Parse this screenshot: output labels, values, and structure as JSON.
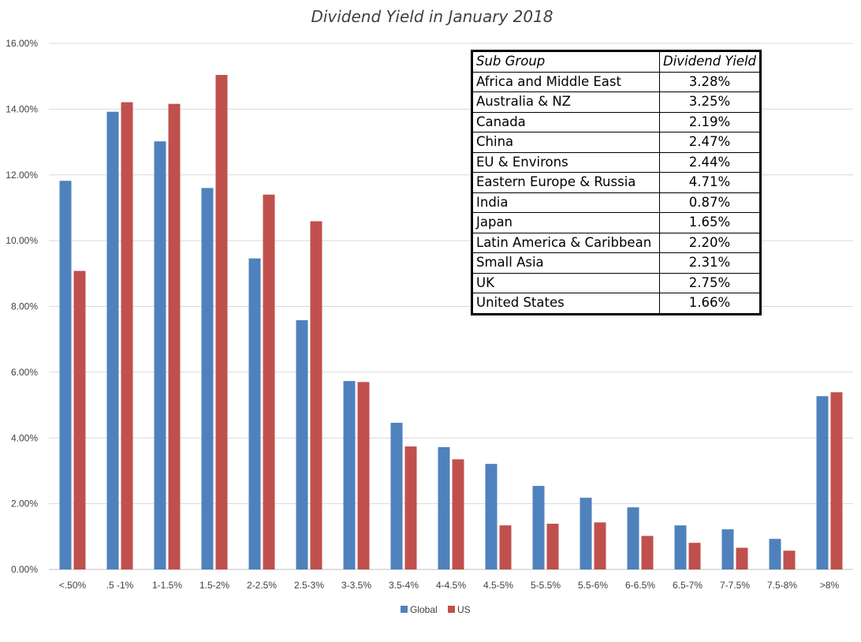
{
  "chart_data": {
    "type": "bar",
    "title": "Dividend Yield in January 2018",
    "categories": [
      "<.50%",
      ".5 -1%",
      "1-1.5%",
      "1.5-2%",
      "2-2.5%",
      "2.5-3%",
      "3-3.5%",
      "3.5-4%",
      "4-4.5%",
      "4.5-5%",
      "5-5.5%",
      "5.5-6%",
      "6-6.5%",
      "6.5-7%",
      "7-7.5%",
      "7.5-8%",
      ">8%"
    ],
    "series": [
      {
        "name": "Global",
        "color": "#4f81bd",
        "values": [
          11.82,
          13.92,
          13.02,
          11.6,
          9.46,
          7.58,
          5.73,
          4.46,
          3.72,
          3.21,
          2.54,
          2.18,
          1.89,
          1.34,
          1.22,
          0.93,
          5.27
        ]
      },
      {
        "name": "US",
        "color": "#c0504d",
        "values": [
          9.08,
          14.21,
          14.16,
          15.04,
          11.4,
          10.59,
          5.7,
          3.74,
          3.35,
          1.34,
          1.39,
          1.43,
          1.02,
          0.81,
          0.66,
          0.57,
          5.39
        ]
      }
    ],
    "ylim": [
      0,
      16
    ],
    "yticks": [
      "0.00%",
      "2.00%",
      "4.00%",
      "6.00%",
      "8.00%",
      "10.00%",
      "12.00%",
      "14.00%",
      "16.00%"
    ],
    "xlabel": "",
    "ylabel": "",
    "grid": true,
    "legend": "bottom-center"
  },
  "table": {
    "header": {
      "group": "Sub Group",
      "yield": "Dividend Yield"
    },
    "rows": [
      {
        "group": "Africa and Middle East",
        "yield": "3.28%"
      },
      {
        "group": "Australia & NZ",
        "yield": "3.25%"
      },
      {
        "group": "Canada",
        "yield": "2.19%"
      },
      {
        "group": "China",
        "yield": "2.47%"
      },
      {
        "group": "EU & Environs",
        "yield": "2.44%"
      },
      {
        "group": "Eastern Europe & Russia",
        "yield": "4.71%"
      },
      {
        "group": "India",
        "yield": "0.87%"
      },
      {
        "group": "Japan",
        "yield": "1.65%"
      },
      {
        "group": "Latin America & Caribbean",
        "yield": "2.20%"
      },
      {
        "group": "Small Asia",
        "yield": "2.31%"
      },
      {
        "group": "UK",
        "yield": "2.75%"
      },
      {
        "group": "United States",
        "yield": "1.66%"
      }
    ]
  }
}
